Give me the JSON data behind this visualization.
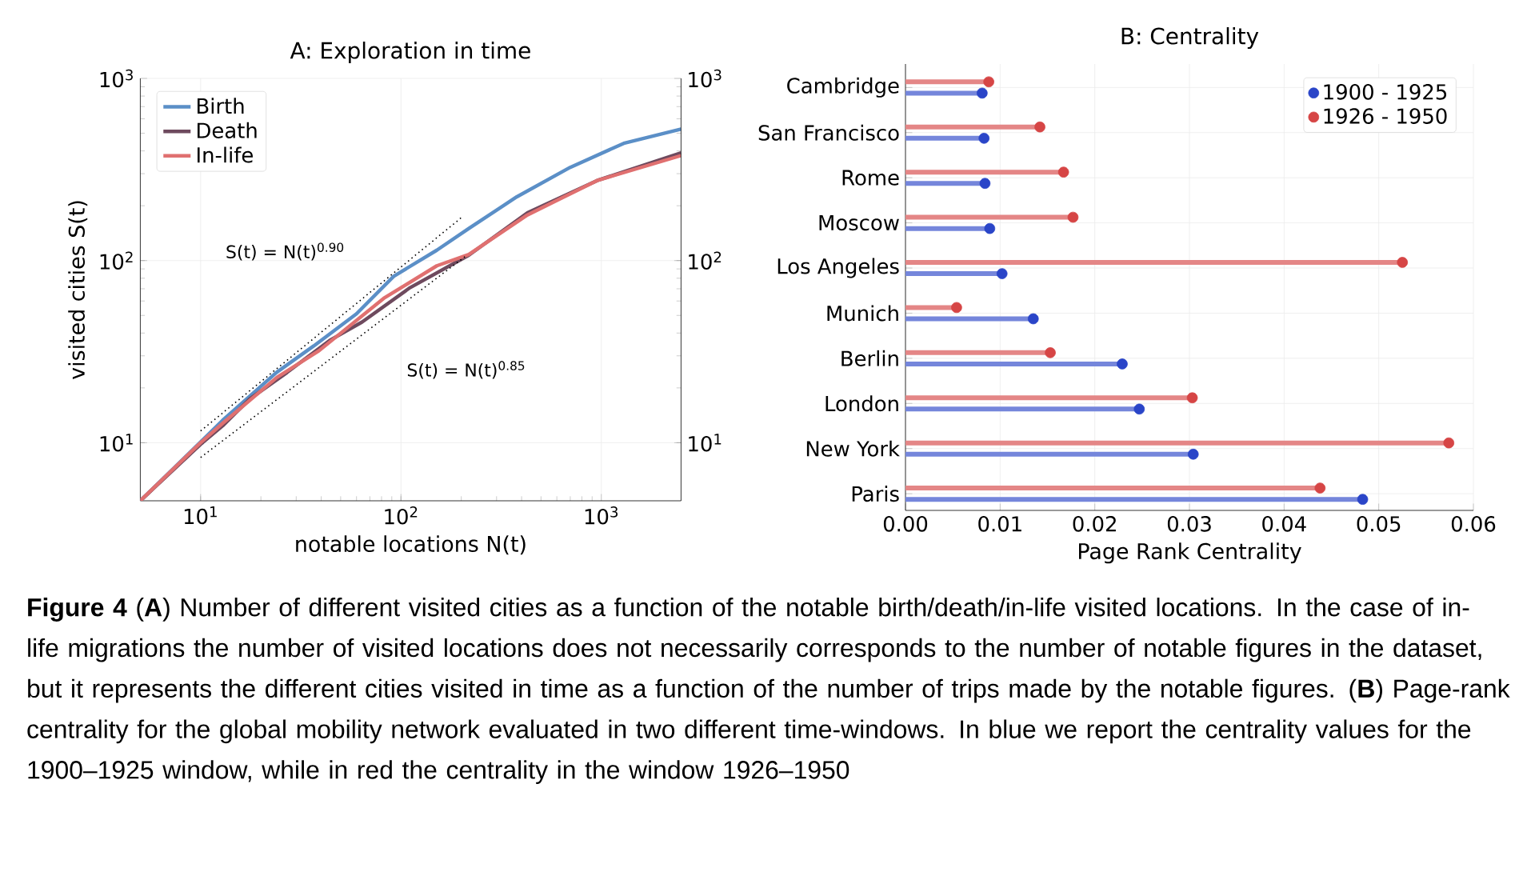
{
  "chart_data": [
    {
      "type": "line",
      "title": "A: Exploration in time",
      "xlabel": "notable locations N(t)",
      "ylabel": "visited cities S(t)",
      "log": "xy",
      "xlim": [
        5,
        2500
      ],
      "ylim": [
        4.8,
        1000
      ],
      "xticks": [
        {
          "value": 10,
          "label": "10$^{1}$"
        },
        {
          "value": 100,
          "label": "10$^{2}$"
        },
        {
          "value": 1000,
          "label": "10$^{3}$"
        }
      ],
      "yticks": [
        {
          "value": 10,
          "label": "10$^{1}$"
        },
        {
          "value": 100,
          "label": "10$^{2}$"
        },
        {
          "value": 1000,
          "label": "10$^{3}$"
        }
      ],
      "grid": true,
      "legend": "top left",
      "marker": "none",
      "series": [
        {
          "name": "Birth",
          "color": "#5b8fc7",
          "x": [
            5,
            8.9,
            12.9,
            23.9,
            36.7,
            60,
            92,
            151,
            218,
            379,
            700,
            1294,
            2500
          ],
          "values": [
            4.8,
            8.9,
            13.3,
            24.3,
            34,
            51,
            82,
            114,
            150,
            224,
            325,
            440,
            527
          ]
        },
        {
          "name": "Death",
          "color": "#6e4a5e",
          "x": [
            5,
            10,
            12.9,
            17.6,
            27,
            44,
            64,
            111,
            218,
            428,
            953,
            2500
          ],
          "values": [
            4.8,
            9.8,
            12.4,
            17.4,
            24.3,
            36.4,
            46,
            71,
            107,
            183,
            275,
            390
          ]
        },
        {
          "name": "In-life",
          "color": "#e07070",
          "x": [
            5,
            10,
            12.9,
            24,
            39,
            82,
            151,
            218,
            428,
            953,
            2500
          ],
          "values": [
            4.8,
            10,
            12.8,
            22.8,
            32,
            62,
            93.6,
            108,
            178,
            275,
            377
          ]
        },
        {
          "color": "#000000",
          "line_style": "dotted",
          "x": [
            10,
            204
          ],
          "values": [
            11.6,
            175
          ]
        },
        {
          "color": "#000000",
          "line_style": "dotted",
          "x": [
            10,
            211
          ],
          "values": [
            8.3,
            106
          ]
        }
      ],
      "annotations": [
        "S(t) = N(t)$^{0.90}$",
        "S(t) = N(t)$^{0.85}$"
      ]
    },
    {
      "type": "lollipop",
      "orientation": "horizontal",
      "title": "B: Centrality",
      "xlabel": "Page Rank Centrality",
      "annotations": [
        "**Figure 4** (**A**) Number of different visited cities as a function of the notable birth/death/in-life visited locations. In the case of in-life migrations the number of visited locations does not necessarily corresponds to the number of notable figures in the dataset, but it represents the different cities visited in time as a function of the number of trips made by the notable figures. (**B**) Page-rank centrality for the global mobility network evaluated in two different time-windows. In blue we report the centrality values for the 1900–1925 window, while in red the centrality in the window 1926–1950"
      ],
      "categories": [
        "Cambridge",
        "San Francisco",
        "Rome",
        "Moscow",
        "Los Angeles",
        "Munich",
        "Berlin",
        "London",
        "New York",
        "Paris"
      ],
      "xlim": [
        0,
        0.06
      ],
      "xticks": [
        {
          "value": 0,
          "label": "0.00"
        },
        {
          "value": 0.01,
          "label": "0.01"
        },
        {
          "value": 0.02,
          "label": "0.02"
        },
        {
          "value": 0.03,
          "label": "0.03"
        },
        {
          "value": 0.04,
          "label": "0.04"
        },
        {
          "value": 0.05,
          "label": "0.05"
        },
        {
          "value": 0.06,
          "label": "0.06"
        }
      ],
      "grid": true,
      "legend": "top right",
      "marker": "circle",
      "series": [
        {
          "name": "1900 - 1925",
          "color": "#2a45c8",
          "values": [
            0.0081,
            0.0083,
            0.0084,
            0.0089,
            0.0102,
            0.0135,
            0.0229,
            0.0247,
            0.0304,
            0.0483
          ]
        },
        {
          "name": "1926 - 1950",
          "color": "#d64545",
          "values": [
            0.0088,
            0.0142,
            0.0167,
            0.0177,
            0.0525,
            0.0054,
            0.0153,
            0.0303,
            0.0574,
            0.0438
          ]
        }
      ]
    }
  ]
}
